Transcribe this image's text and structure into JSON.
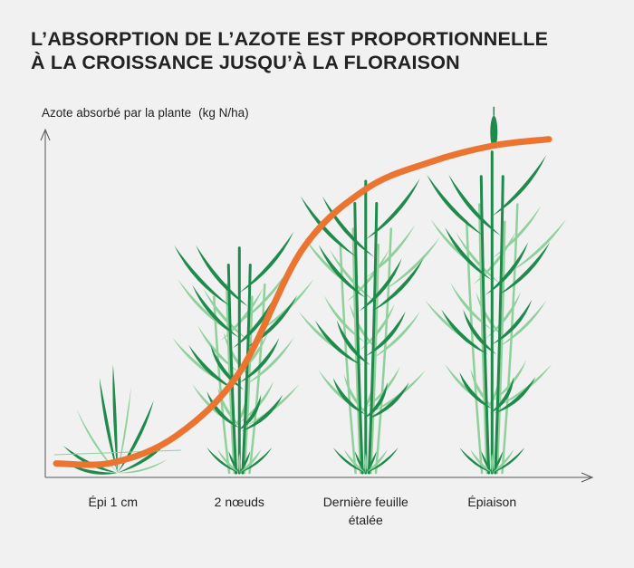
{
  "title_line1": "L’ABSORPTION DE L’AZOTE EST PROPORTIONNELLE",
  "title_line2": "À LA CROISSANCE JUSQU’À LA FLORAISON",
  "chart_data": {
    "type": "line",
    "ylabel": "Azote absorbé par la plante",
    "yunit": "(kg N/ha)",
    "xlabel": "",
    "categories": [
      "Épi 1 cm",
      "2 nœuds",
      "Dernière feuille\nétalée",
      "Épiaison"
    ],
    "curve_color": "#ec7431",
    "plant_dark_color": "#1f8a4c",
    "plant_light_color": "#8fd09b",
    "series": [
      {
        "x": [
          0.0,
          0.5,
          1.0,
          1.5,
          2.0,
          2.5,
          3.0,
          3.45
        ],
        "values": [
          0.02,
          0.1,
          0.29,
          0.66,
          0.84,
          0.92,
          0.97,
          0.99
        ]
      }
    ],
    "xlim": [
      -0.45,
      3.6
    ],
    "ylim": [
      0,
      1
    ],
    "grid": false
  }
}
